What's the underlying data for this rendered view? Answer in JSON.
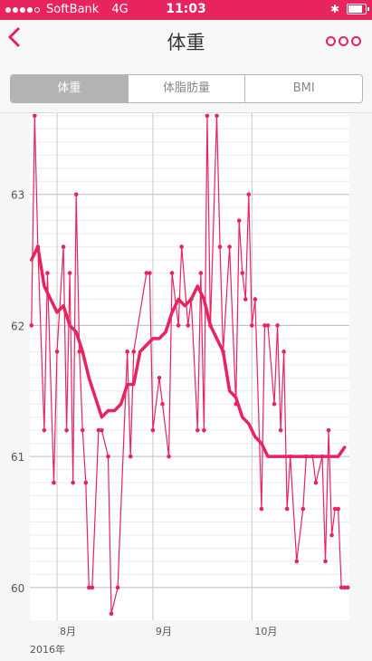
{
  "status_bar": {
    "carrier": "SoftBank",
    "network": "4G",
    "time": "11:03"
  },
  "nav": {
    "back_icon": "chevron-left-icon",
    "title": "体重",
    "more_icon": "more-icon"
  },
  "tabs": [
    {
      "label": "体重",
      "active": true
    },
    {
      "label": "体脂肪量",
      "active": false
    },
    {
      "label": "BMI",
      "active": false
    }
  ],
  "colors": {
    "accent": "#e8245f",
    "grid": "#d8d8d8",
    "segment_active": "#b3b3b3"
  },
  "chart_data": {
    "type": "line",
    "y_ticks": [
      "63",
      "62",
      "61",
      "60"
    ],
    "ylim": [
      59.75,
      63.62
    ],
    "x_labels": [
      "8月",
      "9月",
      "10月"
    ],
    "year_label": "2016年",
    "xlim": [
      -8.5,
      91.5
    ],
    "series": [
      {
        "values_x": [
          -8,
          -7,
          -6,
          -4,
          -3,
          -1,
          0,
          2,
          3,
          4,
          5,
          6,
          7,
          8,
          9,
          10,
          11,
          13,
          14,
          16,
          17,
          19,
          22,
          23,
          24,
          28,
          29,
          30,
          32,
          33,
          35,
          36,
          38,
          39,
          41,
          42,
          44,
          45,
          46,
          47,
          48,
          50,
          51,
          52,
          54,
          56,
          57,
          58,
          59,
          60,
          61,
          62,
          64,
          65,
          66,
          68,
          69,
          70,
          71,
          72,
          73,
          75,
          77,
          78,
          80,
          81,
          83,
          84,
          85,
          86,
          87,
          88,
          89,
          90,
          91
        ],
        "values_y": [
          62.0,
          63.6,
          62.6,
          61.2,
          62.4,
          60.8,
          61.8,
          62.6,
          61.2,
          62.4,
          60.8,
          63.0,
          61.8,
          61.2,
          60.8,
          60.0,
          60.0,
          61.2,
          61.2,
          61.0,
          59.8,
          60.0,
          61.8,
          61.0,
          61.8,
          62.4,
          62.4,
          61.2,
          61.6,
          61.4,
          61.0,
          62.4,
          62.0,
          62.6,
          62.0,
          62.2,
          61.2,
          62.4,
          61.2,
          63.6,
          62.0,
          63.6,
          62.6,
          61.8,
          62.6,
          61.4,
          62.8,
          62.4,
          62.2,
          63.0,
          62.0,
          62.2,
          60.6,
          62.0,
          62.0,
          61.4,
          62.0,
          61.2,
          61.8,
          60.6,
          61.0,
          60.2,
          60.6,
          61.0,
          61.0,
          60.8,
          61.0,
          60.2,
          61.2,
          60.4,
          60.6,
          60.6,
          60.0,
          60.0,
          60.0
        ]
      },
      {
        "values_x": [
          -8,
          -6,
          -4,
          -2,
          0,
          2,
          4,
          6,
          8,
          10,
          12,
          14,
          16,
          18,
          20,
          22,
          24,
          26,
          28,
          30,
          32,
          34,
          36,
          38,
          40,
          42,
          44,
          46,
          48,
          50,
          52,
          54,
          56,
          58,
          60,
          62,
          64,
          66,
          68,
          70,
          72,
          74,
          76,
          78,
          80,
          82,
          84,
          86,
          88,
          90
        ],
        "values_y": [
          62.5,
          62.6,
          62.3,
          62.2,
          62.1,
          62.15,
          62.0,
          61.95,
          61.8,
          61.6,
          61.45,
          61.3,
          61.35,
          61.35,
          61.4,
          61.55,
          61.55,
          61.8,
          61.85,
          61.9,
          61.9,
          61.95,
          62.1,
          62.2,
          62.15,
          62.2,
          62.3,
          62.2,
          62.0,
          61.9,
          61.8,
          61.5,
          61.45,
          61.3,
          61.25,
          61.15,
          61.1,
          61.0,
          61.0,
          61.0,
          61.0,
          61.0,
          61.0,
          61.0,
          61.0,
          61.0,
          61.0,
          61.0,
          61.0,
          61.07
        ]
      }
    ]
  }
}
